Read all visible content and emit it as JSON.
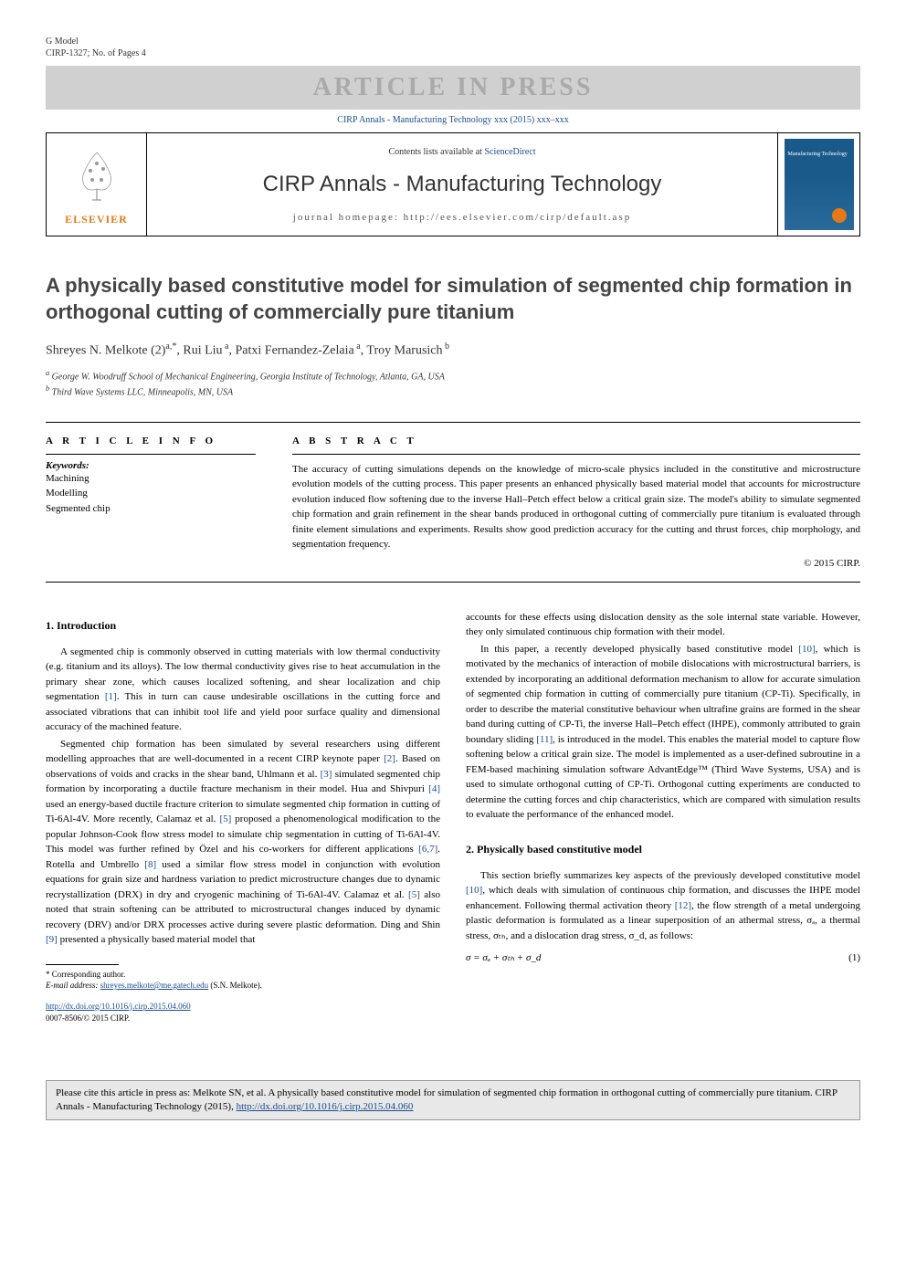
{
  "gmodel": "G Model",
  "gmodel_id": "CIRP-1327; No. of Pages 4",
  "press_banner": "ARTICLE IN PRESS",
  "cirp_ref": "CIRP Annals - Manufacturing Technology xxx (2015) xxx–xxx",
  "contents_line_prefix": "Contents lists available at ",
  "contents_line_link": "ScienceDirect",
  "journal_name": "CIRP Annals - Manufacturing Technology",
  "journal_homepage": "journal homepage: http://ees.elsevier.com/cirp/default.asp",
  "elsevier_label": "ELSEVIER",
  "cover_text": "Manufacturing Technology",
  "title": "A physically based constitutive model for simulation of segmented chip formation in orthogonal cutting of commercially pure titanium",
  "authors_html": "Shreyes N. Melkote  (2)<sup>a,*</sup>, Rui Liu<sup> a</sup>, Patxi Fernandez-Zelaia<sup> a</sup>, Troy Marusich<sup> b</sup>",
  "affil_a": "a George W. Woodruff School of Mechanical Engineering, Georgia Institute of Technology, Atlanta, GA, USA",
  "affil_b": "b Third Wave Systems LLC, Minneapolis, MN, USA",
  "info_heading": "A R T I C L E  I N F O",
  "keywords_label": "Keywords:",
  "keywords": [
    "Machining",
    "Modelling",
    "Segmented chip"
  ],
  "abstract_heading": "A B S T R A C T",
  "abstract": "The accuracy of cutting simulations depends on the knowledge of micro-scale physics included in the constitutive and microstructure evolution models of the cutting process. This paper presents an enhanced physically based material model that accounts for microstructure evolution induced flow softening due to the inverse Hall–Petch effect below a critical grain size. The model's ability to simulate segmented chip formation and grain refinement in the shear bands produced in orthogonal cutting of commercially pure titanium is evaluated through finite element simulations and experiments. Results show good prediction accuracy for the cutting and thrust forces, chip morphology, and segmentation frequency.",
  "copyright": "© 2015 CIRP.",
  "sec1_heading": "1. Introduction",
  "intro_p1": "A segmented chip is commonly observed in cutting materials with low thermal conductivity (e.g. titanium and its alloys). The low thermal conductivity gives rise to heat accumulation in the primary shear zone, which causes localized softening, and shear localization and chip segmentation [1].  This in turn can cause undesirable oscillations in the cutting force and associated vibrations that can inhibit tool life and yield poor surface quality and dimensional accuracy of the machined feature.",
  "intro_p2": "Segmented chip formation has been simulated by several researchers using different modelling approaches that are well-documented in a recent CIRP keynote paper [2].  Based on observations of voids and cracks in the shear band, Uhlmann et al. [3] simulated segmented chip formation by incorporating a ductile fracture mechanism in their model. Hua and Shivpuri [4] used an energy-based ductile fracture criterion to simulate segmented chip formation in cutting of Ti-6Al-4V. More recently, Calamaz et al. [5] proposed a phenomenological modification to the popular Johnson-Cook flow stress model to simulate chip segmentation in cutting of Ti-6Al-4V. This model was further refined by Özel and his co-workers for different applications [6,7].  Rotella and Umbrello [8] used a similar flow stress model in conjunction with evolution equations for grain size and hardness variation to predict microstructure changes due to dynamic recrystallization (DRX) in dry and cryogenic machining of Ti-6Al-4V. Calamaz et al. [5] also noted that strain softening can be attributed to microstructural changes induced by dynamic recovery (DRV) and/or DRX processes active during severe plastic deformation. Ding and Shin [9] presented a physically based material model that",
  "col2_p1": "accounts for these effects using dislocation density as the sole internal state variable. However, they only simulated continuous chip formation with their model.",
  "col2_p2": "In this paper, a recently developed physically based constitutive model [10], which is motivated by the mechanics of interaction of mobile dislocations with microstructural barriers, is extended by incorporating an additional deformation mechanism to allow for accurate simulation of segmented chip formation in cutting of commercially pure titanium (CP-Ti). Specifically, in order to describe the material constitutive behaviour when ultrafine grains are formed in the shear band during cutting of CP-Ti, the inverse Hall–Petch effect (IHPE), commonly attributed to grain boundary sliding [11], is introduced in the model. This enables the material model to capture flow softening below a critical grain size. The model is implemented as a user-defined subroutine in a FEM-based machining simulation software AdvantEdge™ (Third Wave Systems, USA) and is used to simulate orthogonal cutting of CP-Ti. Orthogonal cutting experiments are conducted to determine the cutting forces and chip characteristics, which are compared with simulation results to evaluate the performance of the enhanced model.",
  "sec2_heading": "2. Physically based constitutive model",
  "sec2_p1": "This section briefly summarizes key aspects of the previously developed constitutive model [10], which deals with simulation of continuous chip formation, and discusses the IHPE model enhancement. Following thermal activation theory [12], the flow strength of a metal undergoing plastic deformation is formulated as a linear superposition of an athermal stress, σₐ, a thermal stress, σₜₕ, and a dislocation drag stress, σ_d, as follows:",
  "equation1": "σ = σₐ + σₜₕ + σ_d",
  "equation1_num": "(1)",
  "corresponding": "* Corresponding author.",
  "email_label": "E-mail address: ",
  "email": "shreyes.melkote@me.gatech.edu",
  "email_suffix": " (S.N. Melkote).",
  "doi_link": "http://dx.doi.org/10.1016/j.cirp.2015.04.060",
  "issn_line": "0007-8506/© 2015 CIRP.",
  "cite_box_text": "Please cite this article in press as: Melkote SN, et al. A physically based constitutive model for simulation of segmented chip formation in orthogonal cutting of commercially pure titanium. CIRP Annals - Manufacturing Technology (2015), ",
  "cite_box_link": "http://dx.doi.org/10.1016/j.cirp.2015.04.060",
  "refs": {
    "1": "[1]",
    "2": "[2]",
    "3": "[3]",
    "4": "[4]",
    "5": "[5]",
    "6_7": "[6,7]",
    "8": "[8]",
    "9": "[9]",
    "10": "[10]",
    "11": "[11]",
    "12": "[12]"
  },
  "colors": {
    "link": "#1a4d8f",
    "elsevier_orange": "#e67817",
    "banner_bg": "#d0d0d0",
    "banner_text": "#aaaaaa",
    "citebox_bg": "#e8e8e8"
  }
}
